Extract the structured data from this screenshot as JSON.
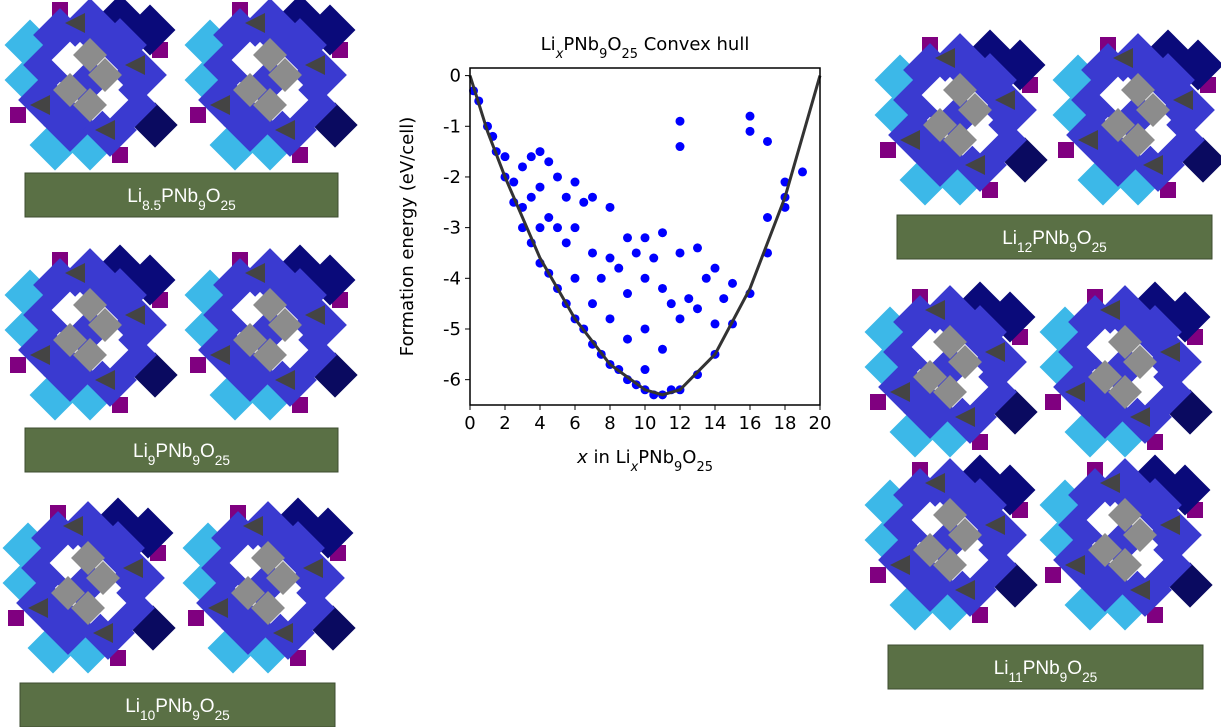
{
  "labels": [
    [
      "Li",
      "8.5",
      "PNb",
      "9",
      "O",
      "25"
    ],
    [
      "Li",
      "9",
      "PNb",
      "9",
      "O",
      "25"
    ],
    [
      "Li",
      "10",
      "PNb",
      "9",
      "O",
      "25"
    ],
    [
      "Li",
      "12",
      "PNb",
      "9",
      "O",
      "25"
    ],
    [
      "Li",
      "11",
      "PNb",
      "9",
      "O",
      "25"
    ]
  ],
  "chart_data": {
    "type": "scatter",
    "title": [
      "Li",
      "x",
      "PNb",
      "9",
      "O",
      "25",
      " Convex hull"
    ],
    "xlabel": [
      "x",
      " in Li",
      "x",
      "PNb",
      "9",
      "O",
      "25"
    ],
    "ylabel": "Formation energy (eV/cell)",
    "xlim": [
      0,
      20
    ],
    "ylim": [
      -6.5,
      0.15
    ],
    "xticks": [
      0,
      2,
      4,
      6,
      8,
      10,
      12,
      14,
      16,
      18,
      20
    ],
    "yticks": [
      0,
      -1,
      -2,
      -3,
      -4,
      -5,
      -6
    ],
    "series": [
      {
        "type": "scatter",
        "color": "#0000ff",
        "x": [
          0.2,
          0.5,
          1,
          1.3,
          1.5,
          2,
          2,
          2.5,
          2.5,
          3,
          3,
          3,
          3.5,
          3.5,
          3.5,
          4,
          4,
          4,
          4,
          4.5,
          4.5,
          4.5,
          5,
          5,
          5,
          5.5,
          5.5,
          5.5,
          6,
          6,
          6,
          6,
          6.5,
          6.5,
          7,
          7,
          7,
          7,
          7.5,
          7.5,
          8,
          8,
          8,
          8,
          8.5,
          8.5,
          9,
          9,
          9,
          9,
          9.5,
          9.5,
          10,
          10,
          10,
          10,
          10,
          10.5,
          10.5,
          11,
          11,
          11,
          11,
          11.5,
          11.5,
          12,
          12,
          12,
          12,
          12,
          12.5,
          13,
          13,
          13,
          13.5,
          14,
          14,
          14,
          14.5,
          15,
          15,
          16,
          16,
          16,
          17,
          17,
          17,
          18,
          18,
          18,
          19
        ],
        "values": [
          -0.3,
          -0.5,
          -1.0,
          -1.2,
          -1.5,
          -1.6,
          -2.0,
          -2.1,
          -2.5,
          -1.8,
          -2.6,
          -3.0,
          -1.6,
          -2.4,
          -3.3,
          -1.5,
          -2.2,
          -3.0,
          -3.7,
          -1.7,
          -2.8,
          -3.9,
          -2.0,
          -3.0,
          -4.2,
          -2.4,
          -3.3,
          -4.5,
          -2.1,
          -3.0,
          -4.0,
          -4.8,
          -2.5,
          -5.0,
          -2.4,
          -3.5,
          -4.5,
          -5.3,
          -4.0,
          -5.5,
          -2.6,
          -3.6,
          -4.8,
          -5.7,
          -3.8,
          -5.8,
          -3.2,
          -4.3,
          -5.2,
          -6.0,
          -3.5,
          -6.1,
          -3.2,
          -4.0,
          -5.0,
          -5.8,
          -6.2,
          -3.6,
          -6.3,
          -3.1,
          -4.2,
          -5.4,
          -6.3,
          -4.5,
          -6.2,
          -0.9,
          -1.4,
          -3.5,
          -4.8,
          -6.2,
          -4.4,
          -3.4,
          -4.6,
          -5.9,
          -4.0,
          -3.8,
          -4.9,
          -5.5,
          -4.4,
          -4.1,
          -4.9,
          -0.8,
          -1.1,
          -4.3,
          -1.3,
          -2.8,
          -3.5,
          -2.1,
          -2.6,
          -2.4,
          -1.9
        ]
      },
      {
        "type": "line",
        "color": "#333333",
        "x": [
          0,
          1,
          2,
          4,
          6,
          8,
          10,
          11,
          12,
          14,
          16,
          18,
          20
        ],
        "values": [
          0,
          -1.1,
          -2.0,
          -3.6,
          -4.8,
          -5.7,
          -6.2,
          -6.3,
          -6.2,
          -5.5,
          -4.2,
          -2.4,
          0
        ]
      }
    ]
  }
}
